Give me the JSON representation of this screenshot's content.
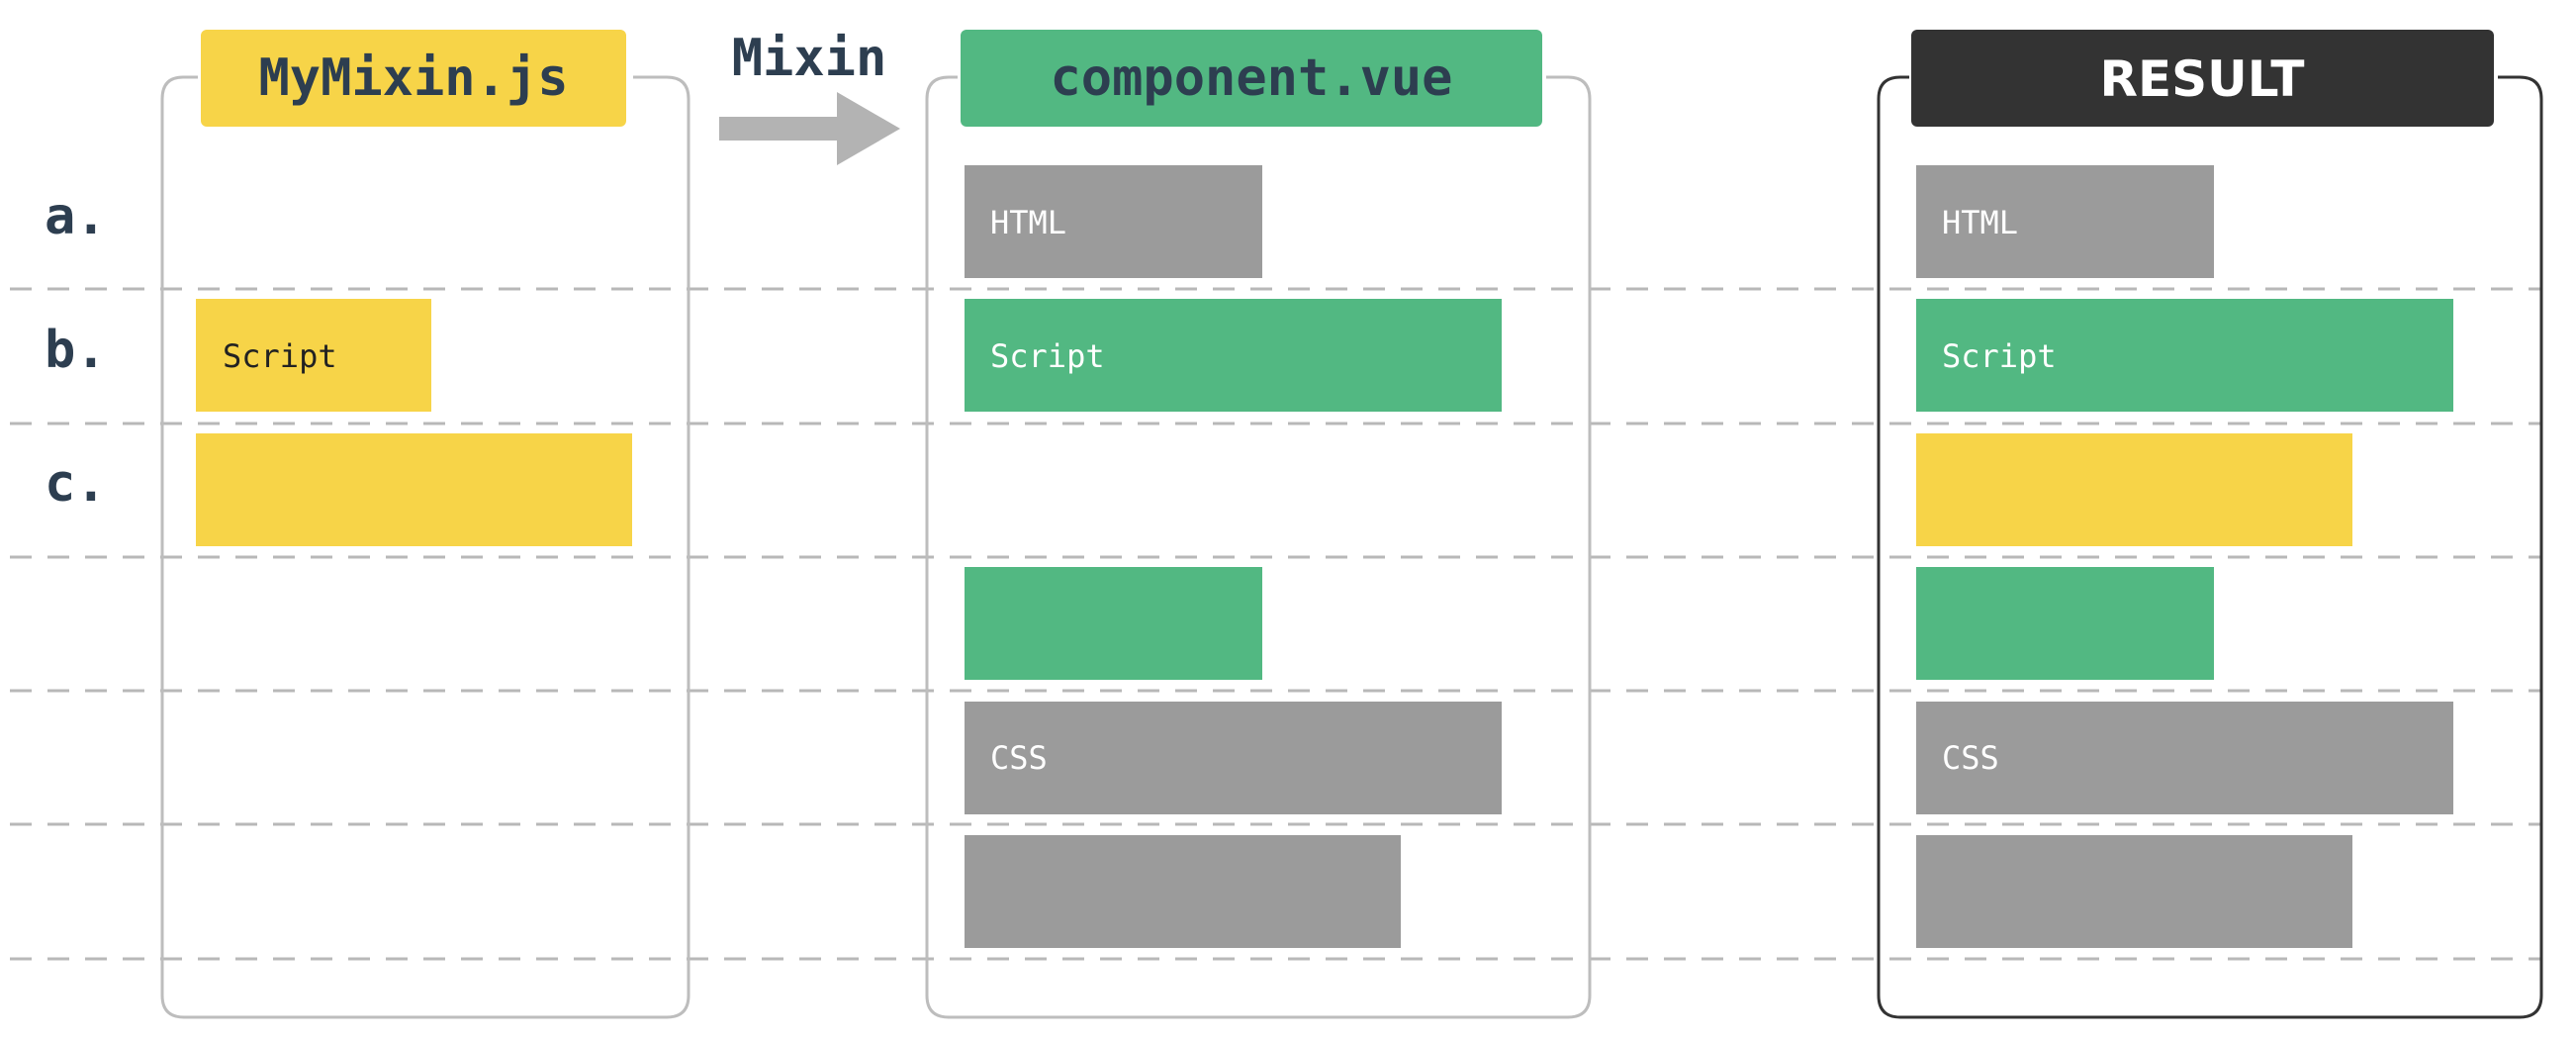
{
  "columns": {
    "mixin": {
      "title": "MyMixin.js"
    },
    "component": {
      "title": "component.vue"
    },
    "result": {
      "title": "RESULT"
    }
  },
  "arrow_label": "Mixin",
  "row_labels": [
    "a.",
    "b.",
    "c."
  ],
  "blocks": {
    "mixin_script": "Script",
    "comp_html": "HTML",
    "comp_script": "Script",
    "comp_css": "CSS",
    "result_html": "HTML",
    "result_script": "Script",
    "result_css": "CSS"
  },
  "colors": {
    "yellow": "#F7D448",
    "green": "#52B882",
    "gray": "#9B9B9B",
    "dark": "#333333",
    "navy": "#2D3E50",
    "arrow": "#B3B3B3",
    "dashed_line": "#B8B8B8",
    "border_light": "#BDBDBD"
  }
}
